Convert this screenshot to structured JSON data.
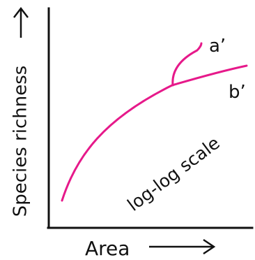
{
  "diagram": {
    "y_axis_label": "Species richness",
    "x_axis_label": "Area",
    "curve_a_label": "a’",
    "curve_b_label": "b’",
    "scale_note": "log-log scale"
  },
  "colors": {
    "curve": "#e6198a",
    "axis": "#111111",
    "text": "#111111"
  }
}
